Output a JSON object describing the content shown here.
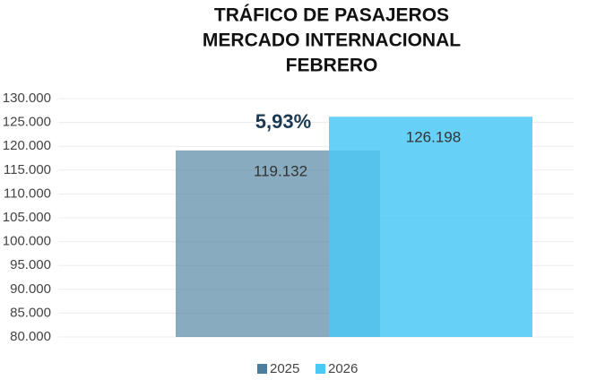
{
  "chart_data": {
    "type": "bar",
    "title": [
      "TRÁFICO DE PASAJEROS",
      "MERCADO INTERNACIONAL",
      "FEBRERO"
    ],
    "categories": [
      null
    ],
    "series": [
      {
        "name": "2025",
        "color": "#4a7e9c",
        "values": [
          119132
        ],
        "value_labels": [
          "119.132"
        ]
      },
      {
        "name": "2026",
        "color": "#4cc8f4",
        "values": [
          126198
        ],
        "value_labels": [
          "126.198"
        ]
      }
    ],
    "annotation": "5,93%",
    "ylim": [
      80000,
      130000
    ],
    "yticks": [
      {
        "value": 80000,
        "label": "80.000"
      },
      {
        "value": 85000,
        "label": "85.000"
      },
      {
        "value": 90000,
        "label": "90.000"
      },
      {
        "value": 95000,
        "label": "95.000"
      },
      {
        "value": 100000,
        "label": "100.000"
      },
      {
        "value": 105000,
        "label": "105.000"
      },
      {
        "value": 110000,
        "label": "110.000"
      },
      {
        "value": 115000,
        "label": "115.000"
      },
      {
        "value": 120000,
        "label": "120.000"
      },
      {
        "value": 125000,
        "label": "125.000"
      },
      {
        "value": 130000,
        "label": "130.000"
      }
    ],
    "grid": true
  }
}
